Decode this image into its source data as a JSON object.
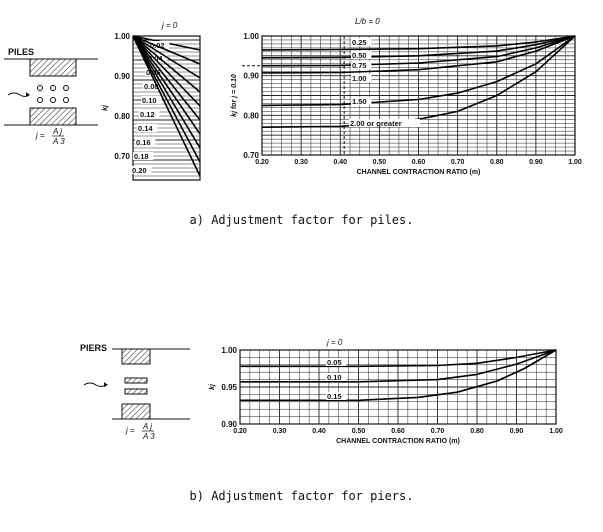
{
  "captions": {
    "a": "a) Adjustment factor for piles.",
    "b": "b) Adjustment factor for piers."
  },
  "schematics": {
    "piles_label": "PILES",
    "piers_label": "PIERS",
    "formula_lhs": "j =",
    "formula_num": "A j",
    "formula_den": "A 3"
  },
  "chart_data": [
    {
      "type": "line",
      "id": "piles-j",
      "ylabel": "kj",
      "xlim": [
        0,
        0.14
      ],
      "ylim": [
        0.64,
        1.0
      ],
      "yticks": [
        0.7,
        0.8,
        0.9,
        1.0
      ],
      "ytick_labels": [
        "0.70",
        "0.80",
        "0.90",
        "1.00"
      ],
      "legend_title": "j = 0",
      "series": [
        {
          "name": "0.02",
          "x": [
            0,
            0.14
          ],
          "y": [
            1.0,
            0.965
          ]
        },
        {
          "name": "0.04",
          "x": [
            0,
            0.14
          ],
          "y": [
            1.0,
            0.93
          ]
        },
        {
          "name": "0.06",
          "x": [
            0,
            0.14
          ],
          "y": [
            1.0,
            0.895
          ]
        },
        {
          "name": "0.08",
          "x": [
            0,
            0.14
          ],
          "y": [
            1.0,
            0.86
          ]
        },
        {
          "name": "0.10",
          "x": [
            0,
            0.14
          ],
          "y": [
            1.0,
            0.825
          ]
        },
        {
          "name": "0.12",
          "x": [
            0,
            0.14
          ],
          "y": [
            1.0,
            0.79
          ]
        },
        {
          "name": "0.14",
          "x": [
            0,
            0.14
          ],
          "y": [
            1.0,
            0.755
          ]
        },
        {
          "name": "0.16",
          "x": [
            0,
            0.14
          ],
          "y": [
            1.0,
            0.72
          ]
        },
        {
          "name": "0.18",
          "x": [
            0,
            0.14
          ],
          "y": [
            1.0,
            0.685
          ]
        },
        {
          "name": "0.20",
          "x": [
            0,
            0.14
          ],
          "y": [
            1.0,
            0.65
          ]
        }
      ]
    },
    {
      "type": "line",
      "id": "piles-m",
      "xlabel": "CHANNEL CONTRACTION RATIO (m)",
      "ylabel": "kj for j = 0.10",
      "legend_title": "L/b = 0",
      "xlim": [
        0.2,
        1.0
      ],
      "ylim": [
        0.7,
        1.0
      ],
      "xticks": [
        0.2,
        0.3,
        0.4,
        0.5,
        0.6,
        0.7,
        0.8,
        0.9,
        1.0
      ],
      "xtick_labels": [
        "0.20",
        "0.30",
        "0.40",
        "0.50",
        "0.60",
        "0.70",
        "0.80",
        "0.90",
        "1.00"
      ],
      "yticks": [
        0.7,
        0.8,
        0.9,
        1.0
      ],
      "ytick_labels": [
        "0.70",
        "0.80",
        "0.90",
        "1.00"
      ],
      "series": [
        {
          "name": "0.25",
          "x": [
            0.2,
            0.4,
            0.6,
            0.8,
            0.9,
            1.0
          ],
          "y": [
            0.965,
            0.966,
            0.968,
            0.975,
            0.985,
            1.0
          ]
        },
        {
          "name": "0.50",
          "x": [
            0.2,
            0.4,
            0.6,
            0.8,
            0.9,
            1.0
          ],
          "y": [
            0.945,
            0.946,
            0.95,
            0.962,
            0.978,
            1.0
          ]
        },
        {
          "name": "0.75",
          "x": [
            0.2,
            0.4,
            0.6,
            0.8,
            0.9,
            1.0
          ],
          "y": [
            0.925,
            0.926,
            0.932,
            0.948,
            0.97,
            1.0
          ]
        },
        {
          "name": "1.00",
          "x": [
            0.2,
            0.4,
            0.6,
            0.8,
            0.9,
            1.0
          ],
          "y": [
            0.907,
            0.908,
            0.915,
            0.935,
            0.962,
            1.0
          ]
        },
        {
          "name": "1.50",
          "x": [
            0.2,
            0.4,
            0.6,
            0.7,
            0.8,
            0.9,
            1.0
          ],
          "y": [
            0.825,
            0.827,
            0.84,
            0.856,
            0.885,
            0.93,
            1.0
          ]
        },
        {
          "name": "2.00 or greater",
          "x": [
            0.2,
            0.4,
            0.6,
            0.7,
            0.8,
            0.9,
            1.0
          ],
          "y": [
            0.77,
            0.772,
            0.79,
            0.81,
            0.85,
            0.91,
            1.0
          ]
        }
      ],
      "reference_line": {
        "x": 0.41,
        "y": 0.925
      }
    },
    {
      "type": "line",
      "id": "piers-m",
      "xlabel": "CHANNEL CONTRACTION RATIO (m)",
      "ylabel": "kj",
      "legend_title": "j = 0",
      "xlim": [
        0.2,
        1.0
      ],
      "ylim": [
        0.9,
        1.0
      ],
      "xticks": [
        0.2,
        0.3,
        0.4,
        0.5,
        0.6,
        0.7,
        0.8,
        0.9,
        1.0
      ],
      "xtick_labels": [
        "0.20",
        "0.30",
        "0.40",
        "0.50",
        "0.60",
        "0.70",
        "0.80",
        "0.90",
        "1.00"
      ],
      "yticks": [
        0.9,
        0.95,
        1.0
      ],
      "ytick_labels": [
        "0.90",
        "0.95",
        "1.00"
      ],
      "series": [
        {
          "name": "0.05",
          "x": [
            0.2,
            0.5,
            0.7,
            0.8,
            0.9,
            1.0
          ],
          "y": [
            0.978,
            0.978,
            0.979,
            0.982,
            0.99,
            1.0
          ]
        },
        {
          "name": "0.10",
          "x": [
            0.2,
            0.5,
            0.7,
            0.8,
            0.9,
            1.0
          ],
          "y": [
            0.957,
            0.957,
            0.96,
            0.967,
            0.981,
            1.0
          ]
        },
        {
          "name": "0.15",
          "x": [
            0.2,
            0.5,
            0.65,
            0.75,
            0.85,
            0.92,
            1.0
          ],
          "y": [
            0.932,
            0.932,
            0.936,
            0.943,
            0.958,
            0.975,
            1.0
          ]
        }
      ]
    }
  ]
}
